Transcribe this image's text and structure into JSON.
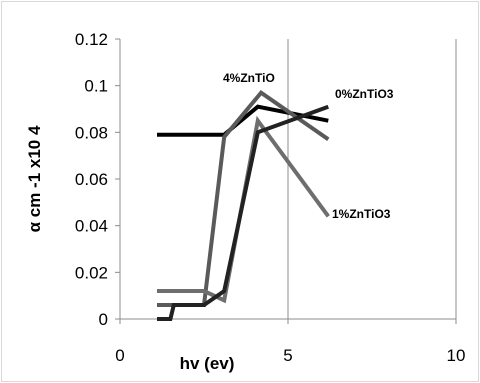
{
  "chart_data": {
    "type": "line",
    "title": "",
    "xlabel": "hv (ev)",
    "ylabel": "α cm -1 x10 4",
    "xlim": [
      0,
      10
    ],
    "ylim": [
      0,
      0.12
    ],
    "xticks": [
      0,
      5,
      10
    ],
    "yticks": [
      0,
      0.02,
      0.04,
      0.06,
      0.08,
      0.1,
      0.12
    ],
    "xtick_labels": [
      "0",
      "5",
      "10"
    ],
    "ytick_labels": [
      "0",
      "0.02",
      "0.04",
      "0.06",
      "0.08",
      "0.1",
      "0.12"
    ],
    "grid": {
      "vertical": true,
      "horizontal": false
    },
    "legend": "none",
    "series": [
      {
        "name": "0%ZnTiO3",
        "color": "#000000",
        "points": [
          [
            1.1,
            0.079
          ],
          [
            3.1,
            0.079
          ],
          [
            4.1,
            0.091
          ],
          [
            6.2,
            0.085
          ]
        ]
      },
      {
        "name": "4%ZnTiO",
        "color": "#5a5a5a",
        "points": [
          [
            1.1,
            0.006
          ],
          [
            1.5,
            0.006
          ],
          [
            2.5,
            0.006
          ],
          [
            3.1,
            0.078
          ],
          [
            4.2,
            0.097
          ],
          [
            6.2,
            0.077
          ]
        ]
      },
      {
        "name": "1%ZnTiO3",
        "color": "#6e6e6e",
        "points": [
          [
            1.1,
            0.012
          ],
          [
            2.5,
            0.012
          ],
          [
            3.1,
            0.008
          ],
          [
            4.1,
            0.085
          ],
          [
            6.2,
            0.044
          ]
        ]
      },
      {
        "name": "",
        "color": "#222222",
        "points": [
          [
            1.1,
            0
          ],
          [
            1.5,
            0
          ],
          [
            1.6,
            0.006
          ],
          [
            2.5,
            0.006
          ],
          [
            3.1,
            0.012
          ],
          [
            4.1,
            0.08
          ],
          [
            6.2,
            0.091
          ]
        ]
      }
    ]
  }
}
